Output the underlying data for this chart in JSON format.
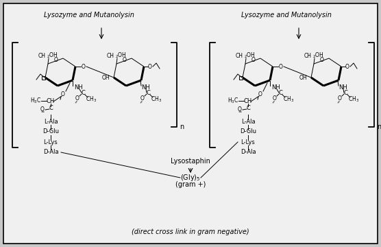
{
  "bg_color": "#c8c8c8",
  "inner_bg": "#f0f0f0",
  "border_color": "#000000",
  "figsize": [
    5.56,
    3.6
  ],
  "dpi": 100,
  "left_label": "Lysozyme and Mutanolysin",
  "right_label": "Lysozyme and Mutanolysin",
  "lysostaphin_label": "Lysostaphin",
  "gly5_label": "(Gly)",
  "gly5_sub": "5",
  "gram_pos_label": "(gram +)",
  "bottom_label": "(direct cross link in gram negative)",
  "peptides": [
    "L-Ala",
    "D-Glu",
    "L-Lys",
    "D-Ala"
  ]
}
